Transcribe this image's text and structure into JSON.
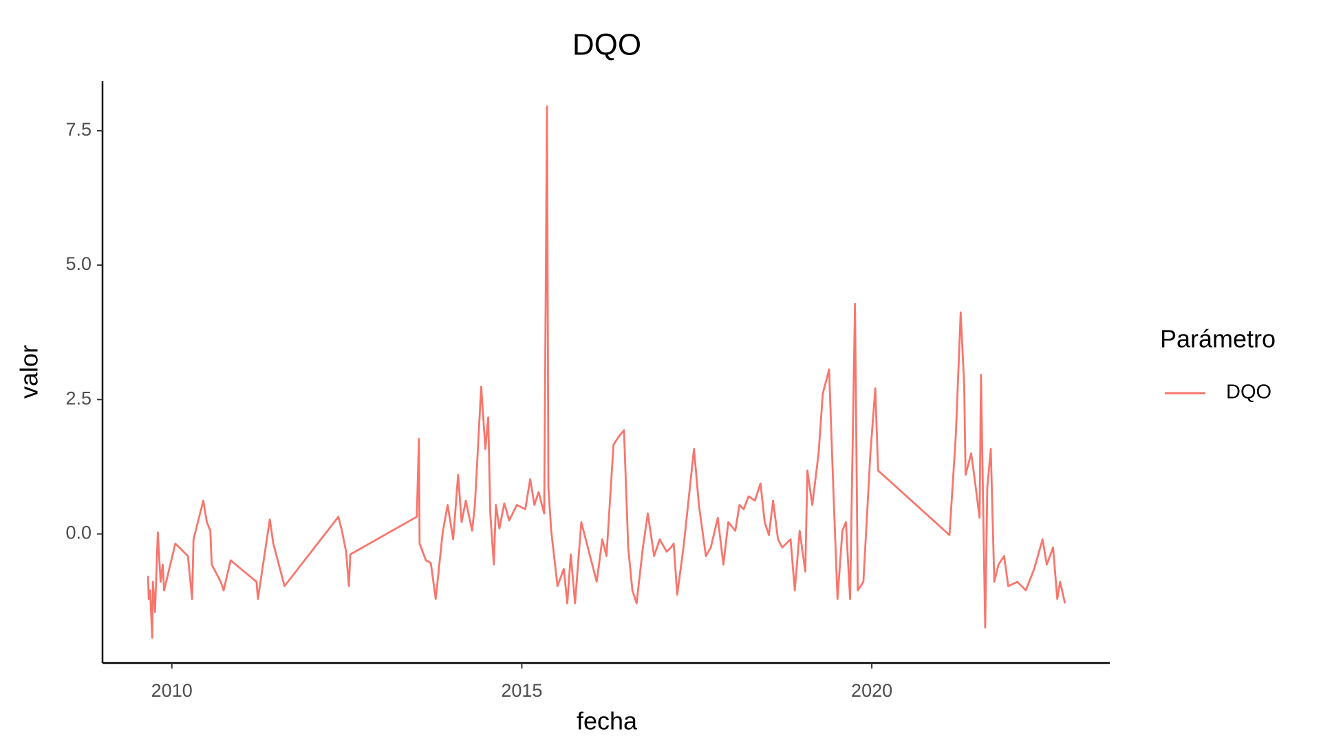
{
  "chart_data": {
    "type": "line",
    "title": "DQO",
    "x_label": "fecha",
    "y_label": "valor",
    "legend_title": "Parámetro",
    "legend_position": "right",
    "x": [
      2009.66,
      2009.67,
      2009.69,
      2009.72,
      2009.73,
      2009.76,
      2009.8,
      2009.84,
      2009.87,
      2009.89,
      2010.05,
      2010.23,
      2010.29,
      2010.31,
      2010.45,
      2010.5,
      2010.55,
      2010.57,
      2010.7,
      2010.74,
      2010.84,
      2011.21,
      2011.23,
      2011.4,
      2011.45,
      2011.61,
      2012.38,
      2012.43,
      2012.49,
      2012.53,
      2012.55,
      2013.5,
      2013.53,
      2013.54,
      2013.63,
      2013.7,
      2013.77,
      2013.87,
      2013.94,
      2014.02,
      2014.09,
      2014.14,
      2014.2,
      2014.29,
      2014.33,
      2014.42,
      2014.48,
      2014.52,
      2014.55,
      2014.6,
      2014.63,
      2014.68,
      2014.75,
      2014.82,
      2014.93,
      2015.05,
      2015.12,
      2015.18,
      2015.24,
      2015.32,
      2015.36,
      2015.38,
      2015.42,
      2015.51,
      2015.6,
      2015.65,
      2015.7,
      2015.76,
      2015.85,
      2016.07,
      2016.15,
      2016.21,
      2016.31,
      2016.39,
      2016.46,
      2016.52,
      2016.58,
      2016.64,
      2016.73,
      2016.8,
      2016.89,
      2016.97,
      2017.07,
      2017.13,
      2017.17,
      2017.22,
      2017.31,
      2017.46,
      2017.53,
      2017.63,
      2017.7,
      2017.8,
      2017.88,
      2017.95,
      2018.05,
      2018.11,
      2018.17,
      2018.24,
      2018.33,
      2018.41,
      2018.47,
      2018.53,
      2018.59,
      2018.66,
      2018.72,
      2018.84,
      2018.9,
      2018.97,
      2019.05,
      2019.08,
      2019.15,
      2019.24,
      2019.3,
      2019.39,
      2019.45,
      2019.51,
      2019.58,
      2019.63,
      2019.69,
      2019.76,
      2019.8,
      2019.88,
      2019.98,
      2020.05,
      2020.09,
      2021.11,
      2021.2,
      2021.27,
      2021.32,
      2021.34,
      2021.42,
      2021.47,
      2021.54,
      2021.56,
      2021.62,
      2021.65,
      2021.7,
      2021.75,
      2021.81,
      2021.89,
      2021.95,
      2022.08,
      2022.2,
      2022.32,
      2022.44,
      2022.5,
      2022.59,
      2022.65,
      2022.69,
      2022.76
    ],
    "series": [
      {
        "name": "DQO",
        "color": "#F8766D",
        "values": [
          -0.78,
          -1.21,
          -1.05,
          -1.93,
          -0.89,
          -1.45,
          0.03,
          -0.89,
          -0.57,
          -1.05,
          -0.18,
          -0.41,
          -1.21,
          -0.1,
          0.62,
          0.22,
          0.06,
          -0.57,
          -0.89,
          -1.05,
          -0.49,
          -0.89,
          -1.21,
          0.27,
          -0.18,
          -0.97,
          0.32,
          0.06,
          -0.33,
          -0.97,
          -0.38,
          0.32,
          1.77,
          -0.18,
          -0.49,
          -0.54,
          -1.21,
          0.03,
          0.54,
          -0.1,
          1.1,
          0.22,
          0.62,
          0.06,
          0.54,
          2.74,
          1.58,
          2.17,
          0.38,
          -0.57,
          0.54,
          0.1,
          0.57,
          0.25,
          0.54,
          0.46,
          1.02,
          0.54,
          0.78,
          0.38,
          7.95,
          0.86,
          0.06,
          -0.97,
          -0.65,
          -1.29,
          -0.38,
          -1.29,
          0.22,
          -0.89,
          -0.1,
          -0.41,
          1.66,
          1.82,
          1.93,
          -0.25,
          -1.05,
          -1.29,
          -0.25,
          0.38,
          -0.41,
          -0.1,
          -0.33,
          -0.25,
          -0.18,
          -1.13,
          -0.25,
          1.58,
          0.54,
          -0.41,
          -0.25,
          0.3,
          -0.57,
          0.22,
          0.06,
          0.54,
          0.46,
          0.7,
          0.62,
          0.94,
          0.22,
          -0.02,
          0.62,
          -0.1,
          -0.25,
          -0.1,
          -1.05,
          0.06,
          -0.7,
          1.18,
          0.54,
          1.5,
          2.61,
          3.06,
          0.86,
          -1.21,
          0.06,
          0.22,
          -1.21,
          4.28,
          -1.05,
          -0.89,
          1.5,
          2.71,
          1.18,
          -0.02,
          1.82,
          4.12,
          2.77,
          1.1,
          1.5,
          1.02,
          0.3,
          2.96,
          -1.74,
          0.86,
          1.58,
          -0.89,
          -0.57,
          -0.41,
          -0.97,
          -0.89,
          -1.05,
          -0.65,
          -0.1,
          -0.57,
          -0.25,
          -1.21,
          -0.89,
          -1.29
        ]
      }
    ],
    "xlim": [
      2009.01,
      2023.4
    ],
    "xticks": [
      2010,
      2015,
      2020
    ],
    "ylim": [
      -2.4,
      8.42
    ],
    "yticks": [
      {
        "value": 0,
        "label": "0.0"
      },
      2.5,
      {
        "value": 5,
        "label": "5.0"
      },
      7.5
    ],
    "grid": false
  }
}
